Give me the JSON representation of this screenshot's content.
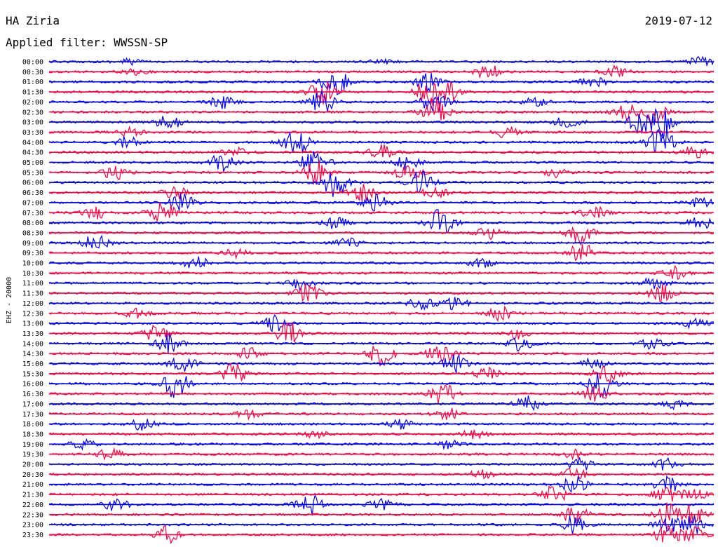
{
  "header": {
    "station": "HA Ziria",
    "date": "2019-07-12",
    "filter": "Applied filter: WWSSN-SP"
  },
  "chart_data": {
    "type": "helicorder",
    "channel_label": "EHZ - 20000",
    "trace_colors": [
      "#0000ff",
      "#ff0040"
    ],
    "rows": [
      {
        "label": "00:00",
        "events": [
          [
            0.12,
            1
          ],
          [
            0.98,
            1.5
          ],
          [
            0.5,
            0.8
          ]
        ]
      },
      {
        "label": "00:30",
        "events": [
          [
            0.13,
            1
          ],
          [
            0.66,
            2.5
          ],
          [
            0.85,
            2
          ]
        ]
      },
      {
        "label": "01:00",
        "events": [
          [
            0.43,
            6
          ],
          [
            0.57,
            3
          ],
          [
            0.82,
            2
          ]
        ]
      },
      {
        "label": "01:30",
        "events": [
          [
            0.41,
            4
          ],
          [
            0.57,
            4
          ],
          [
            0.6,
            3
          ]
        ]
      },
      {
        "label": "02:00",
        "events": [
          [
            0.41,
            4
          ],
          [
            0.58,
            4
          ],
          [
            0.26,
            2
          ],
          [
            0.73,
            1.5
          ]
        ]
      },
      {
        "label": "02:30",
        "events": [
          [
            0.58,
            5
          ],
          [
            0.87,
            3
          ],
          [
            0.91,
            4
          ]
        ]
      },
      {
        "label": "03:00",
        "events": [
          [
            0.18,
            2.5
          ],
          [
            0.78,
            2
          ],
          [
            0.89,
            4
          ],
          [
            0.92,
            5
          ]
        ]
      },
      {
        "label": "03:30",
        "events": [
          [
            0.69,
            2
          ],
          [
            0.12,
            1.5
          ]
        ]
      },
      {
        "label": "04:00",
        "events": [
          [
            0.37,
            5
          ],
          [
            0.92,
            6
          ],
          [
            0.12,
            2
          ]
        ]
      },
      {
        "label": "04:30",
        "events": [
          [
            0.5,
            2.5
          ],
          [
            0.97,
            2
          ],
          [
            0.28,
            1.5
          ]
        ]
      },
      {
        "label": "05:00",
        "events": [
          [
            0.26,
            3
          ],
          [
            0.4,
            5
          ],
          [
            0.54,
            2.5
          ]
        ]
      },
      {
        "label": "05:30",
        "events": [
          [
            0.1,
            2.5
          ],
          [
            0.4,
            4
          ],
          [
            0.54,
            3
          ],
          [
            0.76,
            1.5
          ]
        ]
      },
      {
        "label": "06:00",
        "events": [
          [
            0.43,
            5
          ],
          [
            0.56,
            4
          ]
        ]
      },
      {
        "label": "06:30",
        "events": [
          [
            0.19,
            2
          ],
          [
            0.47,
            3
          ],
          [
            0.58,
            2
          ]
        ]
      },
      {
        "label": "07:00",
        "events": [
          [
            0.2,
            3
          ],
          [
            0.49,
            3
          ],
          [
            0.98,
            1.5
          ]
        ]
      },
      {
        "label": "07:30",
        "events": [
          [
            0.17,
            4
          ],
          [
            0.07,
            2
          ],
          [
            0.82,
            2
          ]
        ]
      },
      {
        "label": "08:00",
        "events": [
          [
            0.59,
            5
          ],
          [
            0.43,
            2
          ],
          [
            0.98,
            2
          ]
        ]
      },
      {
        "label": "08:30",
        "events": [
          [
            0.8,
            4
          ],
          [
            0.66,
            2
          ]
        ]
      },
      {
        "label": "09:00",
        "events": [
          [
            0.07,
            3
          ],
          [
            0.45,
            1.5
          ]
        ]
      },
      {
        "label": "09:30",
        "events": [
          [
            0.8,
            4
          ],
          [
            0.28,
            1.5
          ]
        ]
      },
      {
        "label": "10:00",
        "events": [
          [
            0.22,
            2.5
          ],
          [
            0.65,
            1.5
          ]
        ]
      },
      {
        "label": "10:30",
        "events": [
          [
            0.94,
            2
          ]
        ]
      },
      {
        "label": "11:00",
        "events": [
          [
            0.38,
            2
          ],
          [
            0.91,
            2
          ]
        ]
      },
      {
        "label": "11:30",
        "events": [
          [
            0.39,
            3
          ],
          [
            0.92,
            3
          ]
        ]
      },
      {
        "label": "12:00",
        "events": [
          [
            0.56,
            2
          ],
          [
            0.61,
            2
          ]
        ]
      },
      {
        "label": "12:30",
        "events": [
          [
            0.68,
            2.5
          ],
          [
            0.13,
            1.5
          ]
        ]
      },
      {
        "label": "13:00",
        "events": [
          [
            0.34,
            3
          ],
          [
            0.97,
            2
          ]
        ]
      },
      {
        "label": "13:30",
        "events": [
          [
            0.36,
            4
          ],
          [
            0.16,
            2.5
          ],
          [
            0.7,
            2
          ]
        ]
      },
      {
        "label": "14:00",
        "events": [
          [
            0.18,
            3
          ],
          [
            0.71,
            2.5
          ],
          [
            0.91,
            2
          ]
        ]
      },
      {
        "label": "14:30",
        "events": [
          [
            0.5,
            4
          ],
          [
            0.59,
            4
          ],
          [
            0.3,
            2
          ]
        ]
      },
      {
        "label": "15:00",
        "events": [
          [
            0.2,
            3
          ],
          [
            0.61,
            3
          ],
          [
            0.82,
            2
          ]
        ]
      },
      {
        "label": "15:30",
        "events": [
          [
            0.28,
            4
          ],
          [
            0.66,
            2
          ],
          [
            0.84,
            3
          ]
        ]
      },
      {
        "label": "16:00",
        "events": [
          [
            0.19,
            5
          ],
          [
            0.83,
            5
          ]
        ]
      },
      {
        "label": "16:30",
        "events": [
          [
            0.59,
            4
          ],
          [
            0.82,
            3
          ]
        ]
      },
      {
        "label": "17:00",
        "events": [
          [
            0.72,
            2.5
          ],
          [
            0.94,
            1.5
          ]
        ]
      },
      {
        "label": "17:30",
        "events": [
          [
            0.6,
            2
          ],
          [
            0.3,
            1.5
          ]
        ]
      },
      {
        "label": "18:00",
        "events": [
          [
            0.14,
            2
          ],
          [
            0.53,
            1.5
          ]
        ]
      },
      {
        "label": "18:30",
        "events": [
          [
            0.64,
            1.5
          ],
          [
            0.4,
            1.2
          ]
        ]
      },
      {
        "label": "19:00",
        "events": [
          [
            0.05,
            1.5
          ],
          [
            0.6,
            1.5
          ]
        ]
      },
      {
        "label": "19:30",
        "events": [
          [
            0.09,
            2
          ],
          [
            0.79,
            1.5
          ]
        ]
      },
      {
        "label": "20:00",
        "events": [
          [
            0.8,
            2
          ],
          [
            0.93,
            2
          ]
        ]
      },
      {
        "label": "20:30",
        "events": [
          [
            0.65,
            1.5
          ],
          [
            0.79,
            2
          ]
        ]
      },
      {
        "label": "21:00",
        "events": [
          [
            0.79,
            3
          ],
          [
            0.93,
            3
          ]
        ]
      },
      {
        "label": "21:30",
        "events": [
          [
            0.76,
            3
          ],
          [
            0.93,
            3
          ],
          [
            0.97,
            2
          ]
        ]
      },
      {
        "label": "22:00",
        "events": [
          [
            0.1,
            2
          ],
          [
            0.39,
            4
          ],
          [
            0.5,
            2
          ]
        ]
      },
      {
        "label": "22:30",
        "events": [
          [
            0.79,
            4
          ],
          [
            0.93,
            4
          ],
          [
            0.97,
            4
          ]
        ]
      },
      {
        "label": "23:00",
        "events": [
          [
            0.79,
            3
          ],
          [
            0.93,
            3
          ],
          [
            0.97,
            3
          ]
        ]
      },
      {
        "label": "23:30",
        "events": [
          [
            0.18,
            3
          ],
          [
            0.93,
            3
          ],
          [
            0.97,
            3
          ]
        ]
      }
    ]
  }
}
